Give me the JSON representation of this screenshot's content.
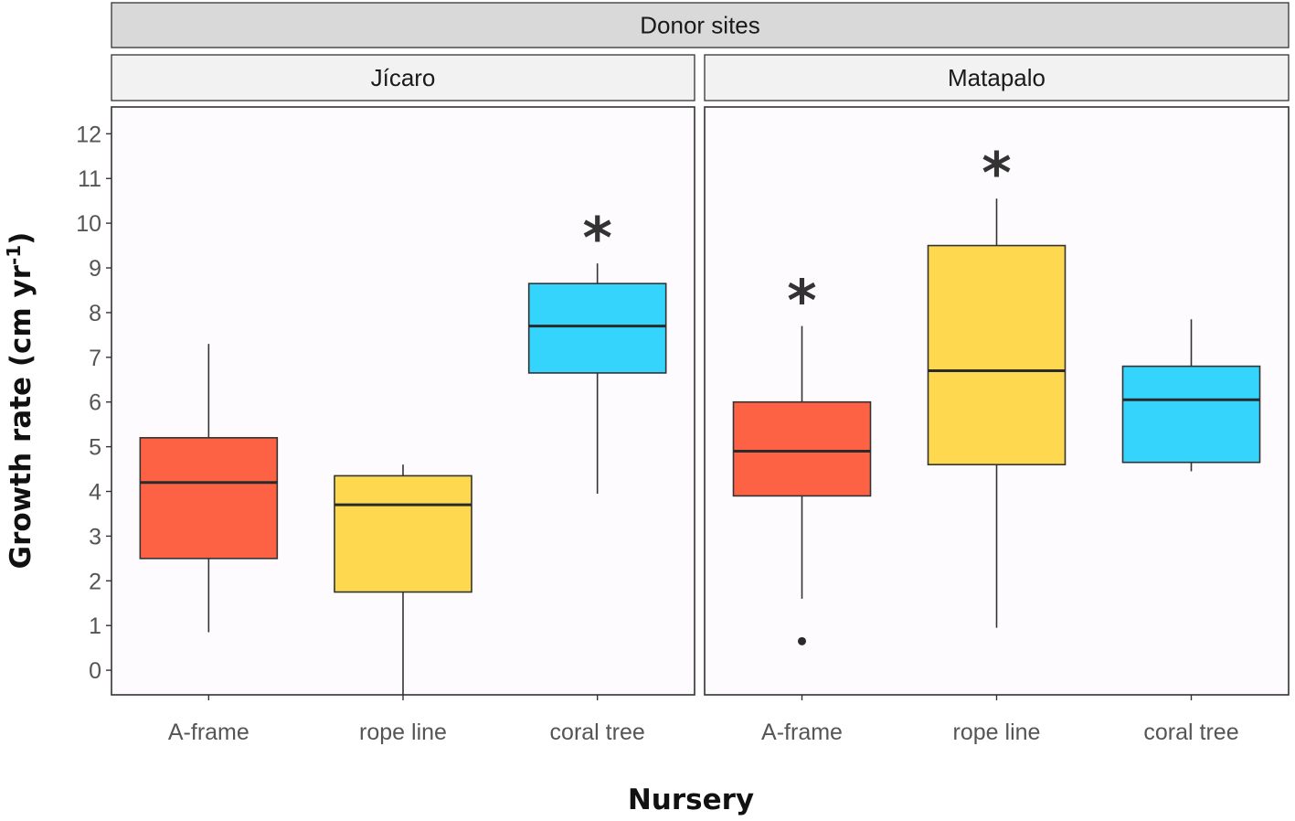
{
  "chart_data": {
    "type": "boxplot",
    "strip_title": "Donor sites",
    "xlabel": "Nursery",
    "ylabel": "Growth rate (cm yr",
    "ylabel_sup": "-1",
    "ylabel_close": ")",
    "ylim": [
      -0.55,
      12.6
    ],
    "yticks": [
      0,
      1,
      2,
      3,
      4,
      5,
      6,
      7,
      8,
      9,
      10,
      11,
      12
    ],
    "categories": [
      "A-frame",
      "rope line",
      "coral tree"
    ],
    "colors": {
      "A-frame": "#fe6245",
      "rope line": "#fed94f",
      "coral tree": "#35d4fd"
    },
    "panels": [
      {
        "name": "Jícaro",
        "boxes": [
          {
            "category": "A-frame",
            "lower_whisker": 0.85,
            "q1": 2.5,
            "median": 4.2,
            "q3": 5.2,
            "upper_whisker": 7.3,
            "outliers": [],
            "star": false
          },
          {
            "category": "rope line",
            "lower_whisker": -0.55,
            "q1": 1.75,
            "median": 3.7,
            "q3": 4.35,
            "upper_whisker": 4.6,
            "outliers": [],
            "star": false
          },
          {
            "category": "coral tree",
            "lower_whisker": 3.95,
            "q1": 6.65,
            "median": 7.7,
            "q3": 8.65,
            "upper_whisker": 9.1,
            "outliers": [],
            "star": true
          }
        ]
      },
      {
        "name": "Matapalo",
        "boxes": [
          {
            "category": "A-frame",
            "lower_whisker": 1.6,
            "q1": 3.9,
            "median": 4.9,
            "q3": 6.0,
            "upper_whisker": 7.7,
            "outliers": [
              0.65
            ],
            "star": true
          },
          {
            "category": "rope line",
            "lower_whisker": 0.95,
            "q1": 4.6,
            "median": 6.7,
            "q3": 9.5,
            "upper_whisker": 10.55,
            "outliers": [],
            "star": true
          },
          {
            "category": "coral tree",
            "lower_whisker": 4.45,
            "q1": 4.65,
            "median": 6.05,
            "q3": 6.8,
            "upper_whisker": 7.85,
            "outliers": [],
            "star": false
          }
        ]
      }
    ],
    "star_label": "*",
    "grid": false,
    "legend": "none"
  }
}
